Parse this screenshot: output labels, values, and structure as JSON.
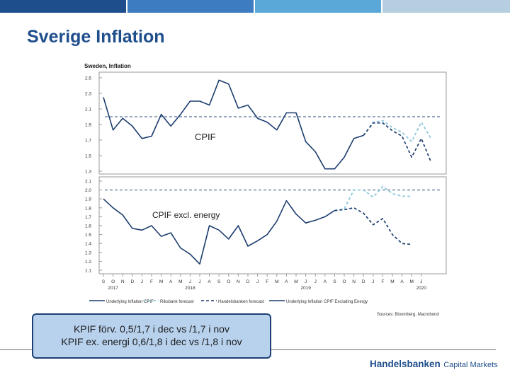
{
  "slide": {
    "title": "Sverige Inflation",
    "note_lines": [
      "KPIF förv. 0,5/1,7 i dec vs /1,7 i nov",
      "KPIF ex. energi 0,6/1,8 i dec vs /1,8 i nov"
    ],
    "logo_brand": "Handelsbanken",
    "logo_sub": "Capital Markets",
    "colors": {
      "bar1": "#1f4e8c",
      "bar2": "#3d7cc1",
      "bar3": "#5aa8d8",
      "bar4": "#b5cfe0",
      "title": "#1f4e8c",
      "note_bg": "#b8d2ee",
      "note_border": "#1c3f75"
    }
  },
  "chart_data": {
    "type": "line",
    "title": "Sweden, Inflation",
    "source": "Sources: Bloomberg, Macrobond",
    "x_tick_labels": [
      "S",
      "O",
      "N",
      "D",
      "J",
      "F",
      "M",
      "A",
      "M",
      "J",
      "J",
      "A",
      "S",
      "O",
      "N",
      "D",
      "J",
      "F",
      "M",
      "A",
      "M",
      "J",
      "J",
      "A",
      "S",
      "O",
      "N",
      "D",
      "J",
      "F",
      "M",
      "A",
      "M",
      "J"
    ],
    "year_labels": [
      {
        "label": "2017",
        "at_index": 1
      },
      {
        "label": "2018",
        "at_index": 9
      },
      {
        "label": "2019",
        "at_index": 21
      },
      {
        "label": "2020",
        "at_index": 33
      }
    ],
    "legend": [
      "Underlying Inflation CPIF",
      "Riksbank forecast",
      "Handelsbanken forecast",
      "Underlying Inflation CPIF Excluding Energy"
    ],
    "panels": [
      {
        "label": "CPIF",
        "ylim": [
          1.3,
          2.5
        ],
        "y_ticks": [
          "2.5",
          "2.3",
          "2.1",
          "1.9",
          "1.7",
          "1.5",
          "1.3"
        ],
        "y_tick_values": [
          2.5,
          2.3,
          2.1,
          1.9,
          1.7,
          1.5,
          1.3
        ],
        "target": 2.0,
        "series": [
          {
            "name": "Underlying Inflation CPIF",
            "style": "solid",
            "color": "#1c3d6e",
            "start_index": 0,
            "values": [
              2.25,
              1.83,
              1.98,
              1.88,
              1.72,
              1.75,
              2.03,
              1.88,
              2.03,
              2.2,
              2.2,
              2.15,
              2.47,
              2.42,
              2.11,
              2.15,
              1.98,
              1.93,
              1.83,
              2.05,
              2.05,
              1.68,
              1.55,
              1.33,
              1.33,
              1.48,
              1.72,
              1.76
            ]
          },
          {
            "name": "Riksbank forecast",
            "style": "dashed",
            "color": "#8cc8dc",
            "start_index": 27,
            "values": [
              1.76,
              1.93,
              1.95,
              1.86,
              1.8,
              1.68,
              1.93,
              1.72
            ]
          },
          {
            "name": "Handelsbanken forecast",
            "style": "dashed",
            "color": "#1c3d6e",
            "start_index": 27,
            "values": [
              1.76,
              1.92,
              1.92,
              1.82,
              1.75,
              1.48,
              1.72,
              1.42
            ]
          }
        ]
      },
      {
        "label": "CPIF excl. energy",
        "ylim": [
          1.1,
          2.1
        ],
        "y_ticks": [
          "2.1",
          "2.0",
          "1.9",
          "1.8",
          "1.7",
          "1.6",
          "1.5",
          "1.4",
          "1.3",
          "1.2",
          "1.1"
        ],
        "y_tick_values": [
          2.1,
          2.0,
          1.9,
          1.8,
          1.7,
          1.6,
          1.5,
          1.4,
          1.3,
          1.2,
          1.1
        ],
        "target": 2.0,
        "series": [
          {
            "name": "Underlying Inflation CPIF Excluding Energy",
            "style": "solid",
            "color": "#1c3d6e",
            "start_index": 0,
            "values": [
              1.9,
              1.8,
              1.72,
              1.57,
              1.55,
              1.6,
              1.48,
              1.52,
              1.35,
              1.28,
              1.17,
              1.6,
              1.55,
              1.45,
              1.6,
              1.37,
              1.43,
              1.5,
              1.65,
              1.88,
              1.73,
              1.63,
              1.66,
              1.7,
              1.77
            ]
          },
          {
            "name": "Riksbank forecast",
            "style": "dashed",
            "color": "#8cc8dc",
            "start_index": 24,
            "values": [
              1.77,
              1.79,
              2.0,
              2.0,
              1.92,
              2.04,
              1.96,
              1.93,
              1.93
            ]
          },
          {
            "name": "Handelsbanken forecast",
            "style": "dashed",
            "color": "#1c3d6e",
            "start_index": 24,
            "values": [
              1.77,
              1.78,
              1.8,
              1.74,
              1.61,
              1.68,
              1.5,
              1.4,
              1.39
            ]
          }
        ]
      }
    ]
  }
}
